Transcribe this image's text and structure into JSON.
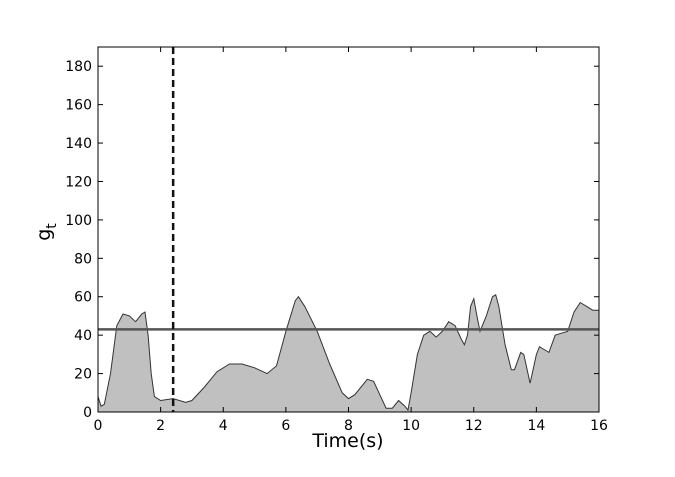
{
  "chart_data": {
    "type": "area",
    "xlabel": "Time(s)",
    "ylabel": "g",
    "ylabel_subscript": "t",
    "x": [
      0,
      0.1,
      0.2,
      0.4,
      0.6,
      0.8,
      1.0,
      1.2,
      1.4,
      1.5,
      1.6,
      1.7,
      1.8,
      2.0,
      2.4,
      2.8,
      3.0,
      3.4,
      3.8,
      4.2,
      4.6,
      5.0,
      5.4,
      5.7,
      6.0,
      6.3,
      6.4,
      6.6,
      7.0,
      7.4,
      7.8,
      8.0,
      8.2,
      8.6,
      8.8,
      9.0,
      9.2,
      9.4,
      9.6,
      9.8,
      9.9,
      10.0,
      10.2,
      10.4,
      10.6,
      10.8,
      11.0,
      11.2,
      11.4,
      11.6,
      11.7,
      11.8,
      11.9,
      12.0,
      12.1,
      12.2,
      12.4,
      12.6,
      12.7,
      12.8,
      13.0,
      13.2,
      13.3,
      13.5,
      13.6,
      13.8,
      14.0,
      14.1,
      14.3,
      14.4,
      14.6,
      14.8,
      15.0,
      15.2,
      15.4,
      15.6,
      15.8,
      16.0
    ],
    "values": [
      8,
      3,
      4,
      20,
      45,
      51,
      50,
      47,
      51,
      52,
      40,
      20,
      8,
      6,
      7,
      5,
      6,
      13,
      21,
      25,
      25,
      23,
      20,
      24,
      42,
      58,
      60,
      55,
      42,
      25,
      10,
      7,
      9,
      17,
      16,
      9,
      2,
      2,
      6,
      3,
      1,
      10,
      30,
      40,
      42,
      39,
      42,
      47,
      45,
      38,
      35,
      40,
      55,
      59,
      50,
      42,
      50,
      60,
      61,
      55,
      35,
      22,
      22,
      31,
      30,
      15,
      30,
      34,
      32,
      31,
      40,
      41,
      42,
      52,
      57,
      55,
      53,
      53
    ],
    "color": "#c0c0c0",
    "line_color": "#333333",
    "hline": 43,
    "hline_color": "#555555",
    "vline": 2.4,
    "vline_color": "#111111",
    "xlim": [
      0,
      16
    ],
    "xticks": [
      0,
      2,
      4,
      6,
      8,
      10,
      12,
      14,
      16
    ],
    "ylim": [
      0,
      190
    ],
    "yticks": [
      0,
      20,
      40,
      60,
      80,
      100,
      120,
      140,
      160,
      180
    ]
  }
}
